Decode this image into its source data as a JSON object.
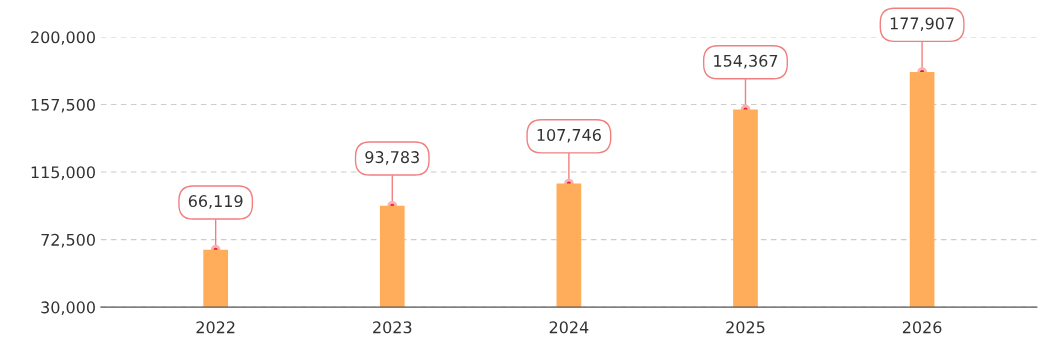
{
  "chart_data": {
    "type": "bar",
    "categories": [
      "2022",
      "2023",
      "2024",
      "2025",
      "2026"
    ],
    "values": [
      66119,
      93783,
      107746,
      154367,
      177907
    ],
    "color": "#ffad5a",
    "ylim": [
      30000,
      200000
    ],
    "yticks": [
      {
        "value": 30000,
        "label": "30,000"
      },
      {
        "value": 72500,
        "label": "72,500"
      },
      {
        "value": 115000,
        "label": "115,000"
      },
      {
        "value": 157500,
        "label": "157,500"
      },
      {
        "value": 200000,
        "label": "200,000"
      }
    ],
    "grid": "y",
    "data_labels": true,
    "value_labels": [
      "66,119",
      "93,783",
      "107,746",
      "154,367",
      "177,907"
    ]
  }
}
